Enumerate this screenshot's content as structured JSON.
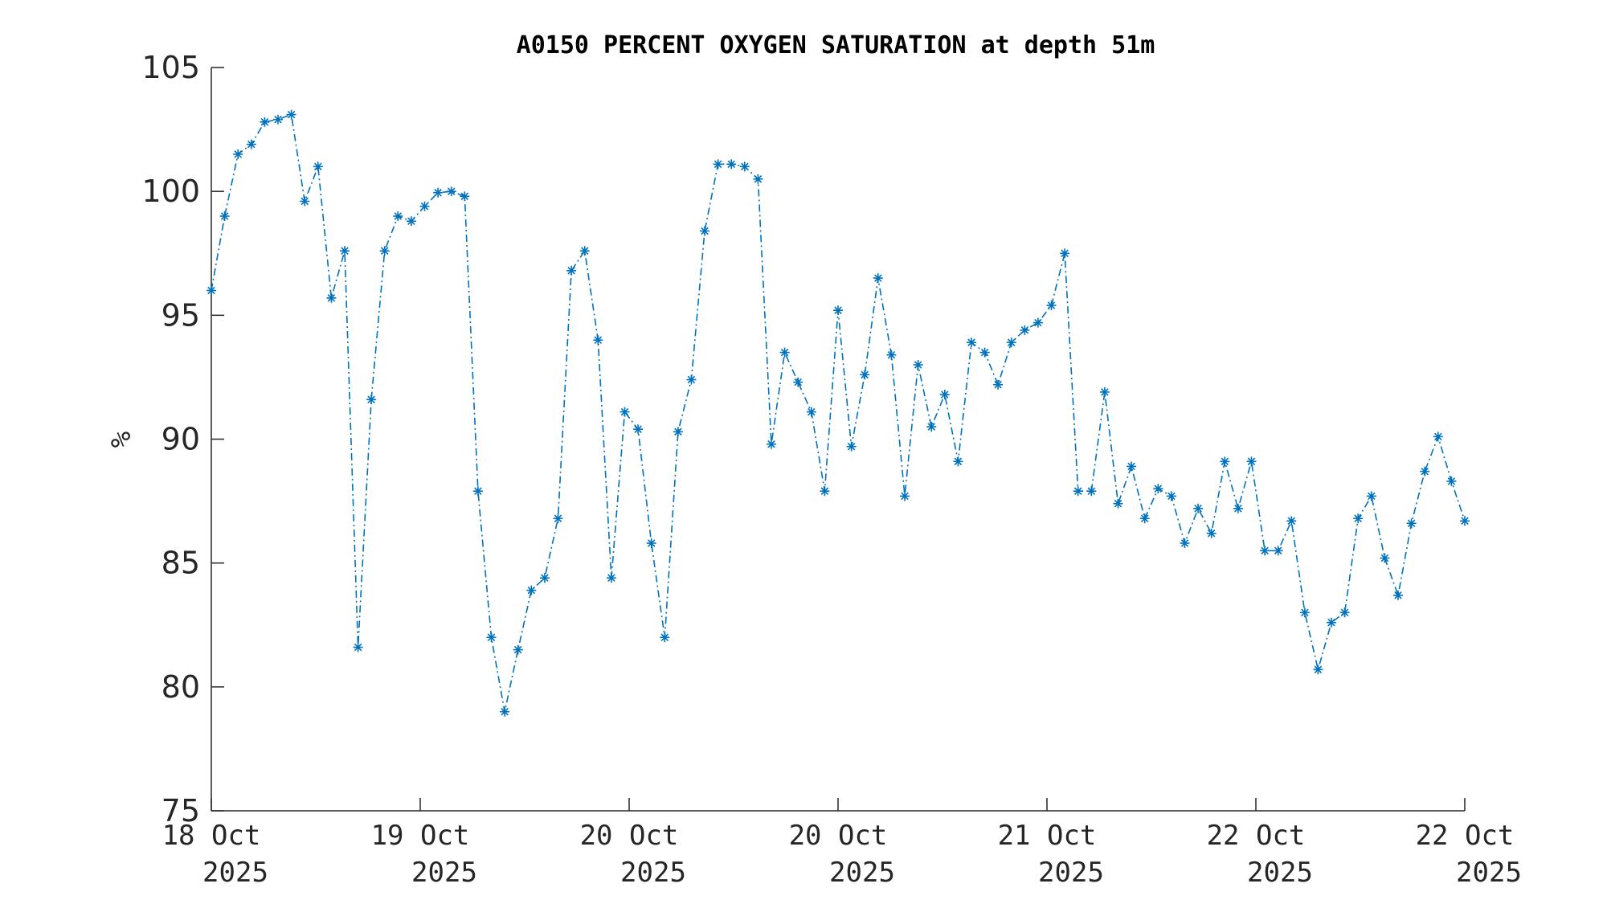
{
  "chart_data": {
    "type": "line",
    "title": "A0150 PERCENT OXYGEN SATURATION at depth 51m",
    "xlabel": "",
    "ylabel": "%",
    "ylim": [
      75,
      105
    ],
    "yticks": [
      75,
      80,
      85,
      90,
      95,
      100,
      105
    ],
    "xticks": [
      {
        "line1": "18 Oct",
        "line2": "2025"
      },
      {
        "line1": "19 Oct",
        "line2": "2025"
      },
      {
        "line1": "20 Oct",
        "line2": "2025"
      },
      {
        "line1": "20 Oct",
        "line2": "2025"
      },
      {
        "line1": "21 Oct",
        "line2": "2025"
      },
      {
        "line1": "22 Oct",
        "line2": "2025"
      },
      {
        "line1": "22 Oct",
        "line2": "2025"
      }
    ],
    "grid": false,
    "marker": "asterisk",
    "line_style": "dash-dot",
    "colors": {
      "series": "#0072bd",
      "axis": "#262626"
    },
    "series": [
      {
        "values": [
          96.0,
          99.0,
          101.5,
          101.9,
          102.8,
          102.9,
          103.1,
          99.6,
          101.0,
          95.7,
          97.6,
          81.6,
          91.6,
          97.6,
          99.0,
          98.8,
          99.4,
          99.95,
          100.0,
          99.8,
          87.9,
          82.0,
          79.0,
          81.5,
          83.9,
          84.4,
          86.8,
          96.8,
          97.6,
          94.0,
          84.4,
          91.1,
          90.4,
          85.8,
          82.0,
          90.3,
          92.4,
          98.4,
          101.1,
          101.1,
          101.0,
          100.5,
          89.8,
          93.5,
          92.3,
          91.1,
          87.9,
          95.2,
          89.7,
          92.6,
          96.5,
          93.4,
          87.7,
          93.0,
          90.5,
          91.8,
          89.1,
          93.9,
          93.5,
          92.2,
          93.9,
          94.4,
          94.7,
          95.4,
          97.5,
          87.9,
          87.9,
          91.9,
          87.4,
          88.9,
          86.8,
          88.0,
          87.7,
          85.8,
          87.2,
          86.2,
          89.1,
          87.2,
          89.1,
          85.5,
          85.5,
          86.7,
          83.0,
          80.7,
          82.6,
          83.0,
          86.8,
          87.7,
          85.2,
          83.7,
          86.6,
          88.7,
          90.1,
          88.3,
          86.7
        ]
      }
    ]
  }
}
